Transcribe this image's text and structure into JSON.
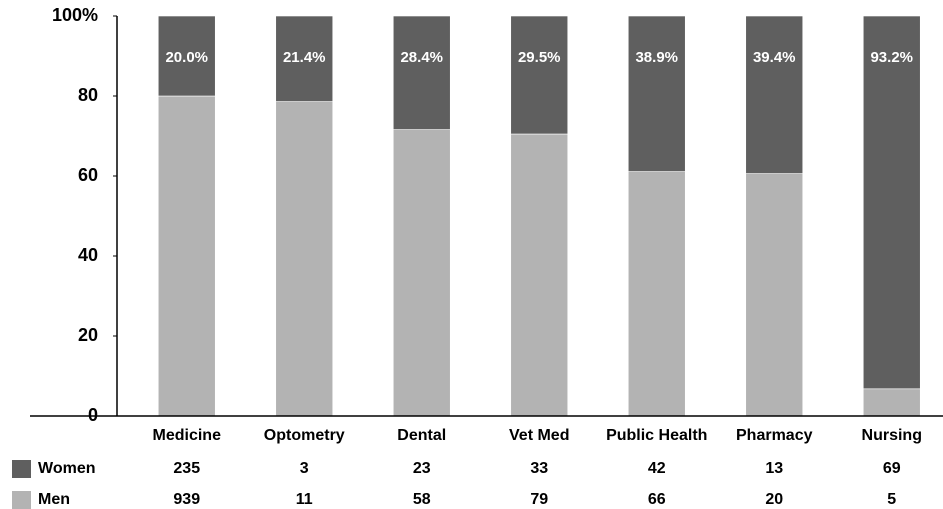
{
  "chart_data": {
    "type": "stacked_percent_bar",
    "categories": [
      "Medicine",
      "Optometry",
      "Dental",
      "Vet Med",
      "Public Health",
      "Pharmacy",
      "Nursing"
    ],
    "series": [
      {
        "name": "Women",
        "color": "#5f5f5f",
        "values": [
          20.0,
          21.4,
          28.4,
          29.5,
          38.9,
          39.4,
          93.2
        ],
        "value_labels": [
          "20.0%",
          "21.4%",
          "28.4%",
          "29.5%",
          "38.9%",
          "39.4%",
          "93.2%"
        ],
        "counts": [
          235,
          3,
          23,
          33,
          42,
          13,
          69
        ]
      },
      {
        "name": "Men",
        "color": "#b3b3b3",
        "values": [
          80.0,
          78.6,
          71.6,
          70.5,
          61.1,
          60.6,
          6.8
        ],
        "counts": [
          939,
          11,
          58,
          79,
          66,
          20,
          5
        ]
      }
    ],
    "ylim": [
      0,
      100
    ],
    "yticks": [
      0,
      20,
      40,
      60,
      80,
      {
        "value": 100,
        "label": "100%"
      }
    ]
  }
}
